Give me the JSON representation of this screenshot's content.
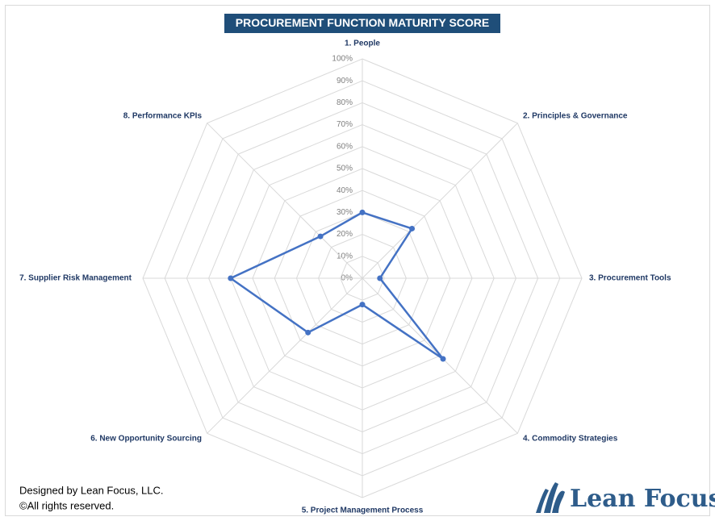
{
  "chart_data": {
    "type": "radar",
    "title": "PROCUREMENT FUNCTION MATURITY SCORE",
    "categories": [
      "1. People",
      "2. Principles & Governance",
      "3. Procurement Tools",
      "4. Commodity Strategies",
      "5. Project Management Process",
      "6. New Opportunity Sourcing",
      "7. Supplier Risk Management",
      "8. Performance KPIs"
    ],
    "values": [
      30,
      32,
      8,
      52,
      12,
      35,
      60,
      27
    ],
    "color": "#4472c4",
    "ylim": [
      0,
      100
    ],
    "yticks": [
      {
        "value": 0,
        "label": "0%"
      },
      {
        "value": 10,
        "label": "10%"
      },
      {
        "value": 20,
        "label": "20%"
      },
      {
        "value": 30,
        "label": "30%"
      },
      {
        "value": 40,
        "label": "40%"
      },
      {
        "value": 50,
        "label": "50%"
      },
      {
        "value": 60,
        "label": "60%"
      },
      {
        "value": 70,
        "label": "70%"
      },
      {
        "value": 80,
        "label": "80%"
      },
      {
        "value": 90,
        "label": "90%"
      },
      {
        "value": 100,
        "label": "100%"
      }
    ],
    "grid": true
  },
  "footer": {
    "line1": "Designed by Lean Focus, LLC.",
    "line2": "©All rights reserved.",
    "logo": "Lean Focus"
  }
}
